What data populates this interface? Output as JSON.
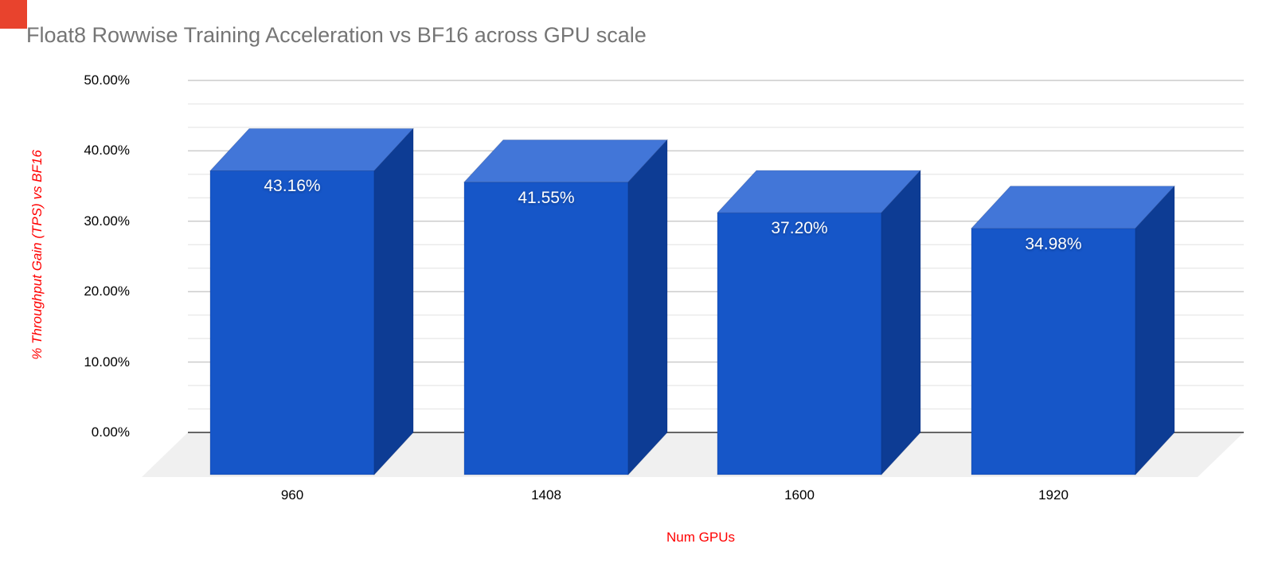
{
  "annotation_marker": {
    "color": "#E8432D"
  },
  "chart_data": {
    "type": "bar",
    "style": "3d-column",
    "title": "Float8 Rowwise Training Acceleration vs BF16 across GPU scale",
    "xlabel": "Num GPUs",
    "ylabel": "% Throughput Gain (TPS) vs BF16",
    "categories": [
      "960",
      "1408",
      "1600",
      "1920"
    ],
    "series": [
      {
        "name": "% Throughput Gain (TPS) vs BF16",
        "values": [
          43.16,
          41.55,
          37.2,
          34.98
        ],
        "value_labels": [
          "43.16%",
          "41.55%",
          "37.20%",
          "34.98%"
        ]
      }
    ],
    "ylim": [
      0,
      50
    ],
    "ytick_values": [
      0,
      10,
      20,
      30,
      40,
      50
    ],
    "ytick_labels": [
      "0.00%",
      "10.00%",
      "20.00%",
      "30.00%",
      "40.00%",
      "50.00%"
    ],
    "grid": "major with 2 minor lines per major interval",
    "legend": "none",
    "colors": {
      "title": "#757575",
      "axis_titles": "#FF0000",
      "tick_labels": "#000000",
      "bar_front": "#1656C8",
      "bar_top": "#4276D8",
      "bar_side": "#0D3C94",
      "bar_edge": "rgba(10,40,110,0.30)",
      "floor": "#F0F0F0",
      "gridline_major": "#CCCCCC",
      "gridline_minor": "#EBEBEB",
      "baseline": "#666666",
      "data_labels": "#FFFFFF",
      "background": "#FFFFFF"
    }
  }
}
